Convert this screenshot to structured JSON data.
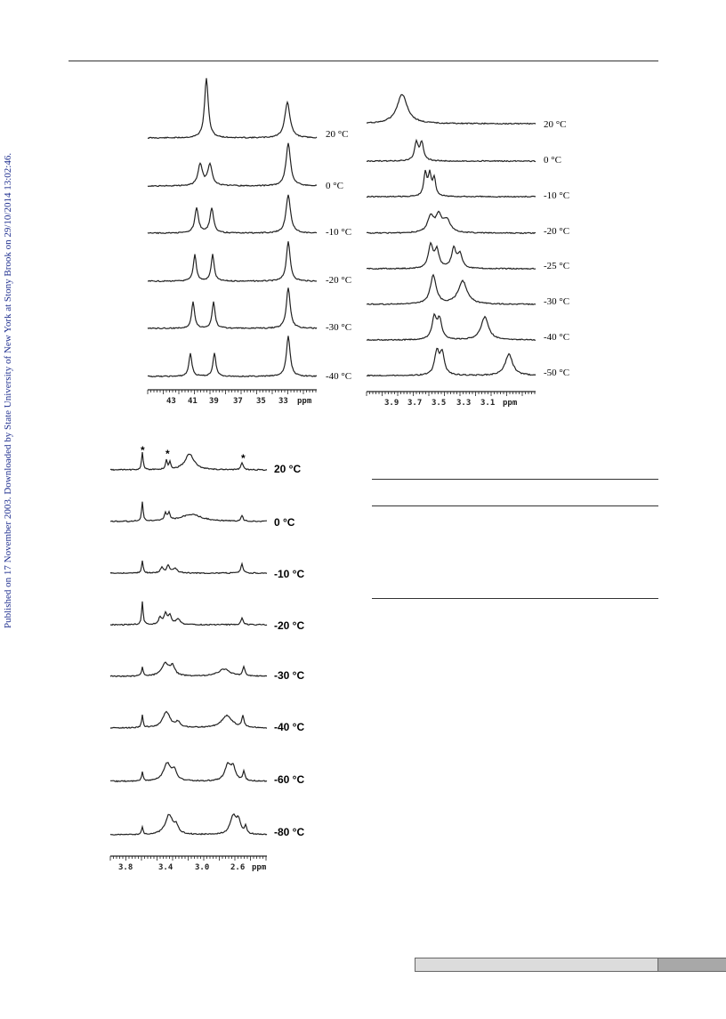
{
  "sidebar_text": "Published on 17 November 2003. Downloaded by State University of New York at Stony Brook on 29/10/2014 13:02:46.",
  "panel_a": {
    "temperatures": [
      "20 °C",
      "0 °C",
      "-10 °C",
      "-20 °C",
      "-30 °C",
      "-40 °C"
    ],
    "axis_ticks": [
      "43",
      "41",
      "39",
      "37",
      "35",
      "33",
      "ppm"
    ]
  },
  "panel_b": {
    "temperatures": [
      "20 °C",
      "0 °C",
      "-10 °C",
      "-20 °C",
      "-25 °C",
      "-30 °C",
      "-40 °C",
      "-50 °C"
    ],
    "axis_ticks": [
      "3.9",
      "3.7",
      "3.5",
      "3.3",
      "3.1",
      "ppm"
    ]
  },
  "panel_c": {
    "temperatures": [
      "20 °C",
      "0 °C",
      "-10 °C",
      "-20 °C",
      "-30 °C",
      "-40 °C",
      "-60 °C",
      "-80 °C"
    ],
    "axis_ticks": [
      "3.8",
      "3.4",
      "3.0",
      "2.6",
      "ppm"
    ],
    "marker": "*"
  }
}
